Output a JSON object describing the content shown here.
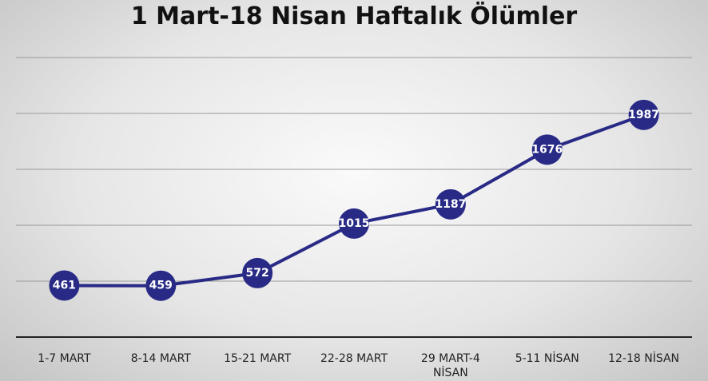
{
  "chart_data": {
    "type": "line",
    "title": "1 Mart-18 Nisan Haftalık Ölümler",
    "categories": [
      "1-7 MART",
      "8-14 MART",
      "15-21 MART",
      "22-28 MART",
      "29 MART-4 NİSAN",
      "5-11 NİSAN",
      "12-18 NİSAN"
    ],
    "values": [
      461,
      459,
      572,
      1015,
      1187,
      1676,
      1987
    ],
    "color": "#282a86",
    "ylim": [
      0,
      2500
    ],
    "yticks": [
      0,
      500,
      1000,
      1500,
      2000,
      2500
    ],
    "grid": true
  }
}
